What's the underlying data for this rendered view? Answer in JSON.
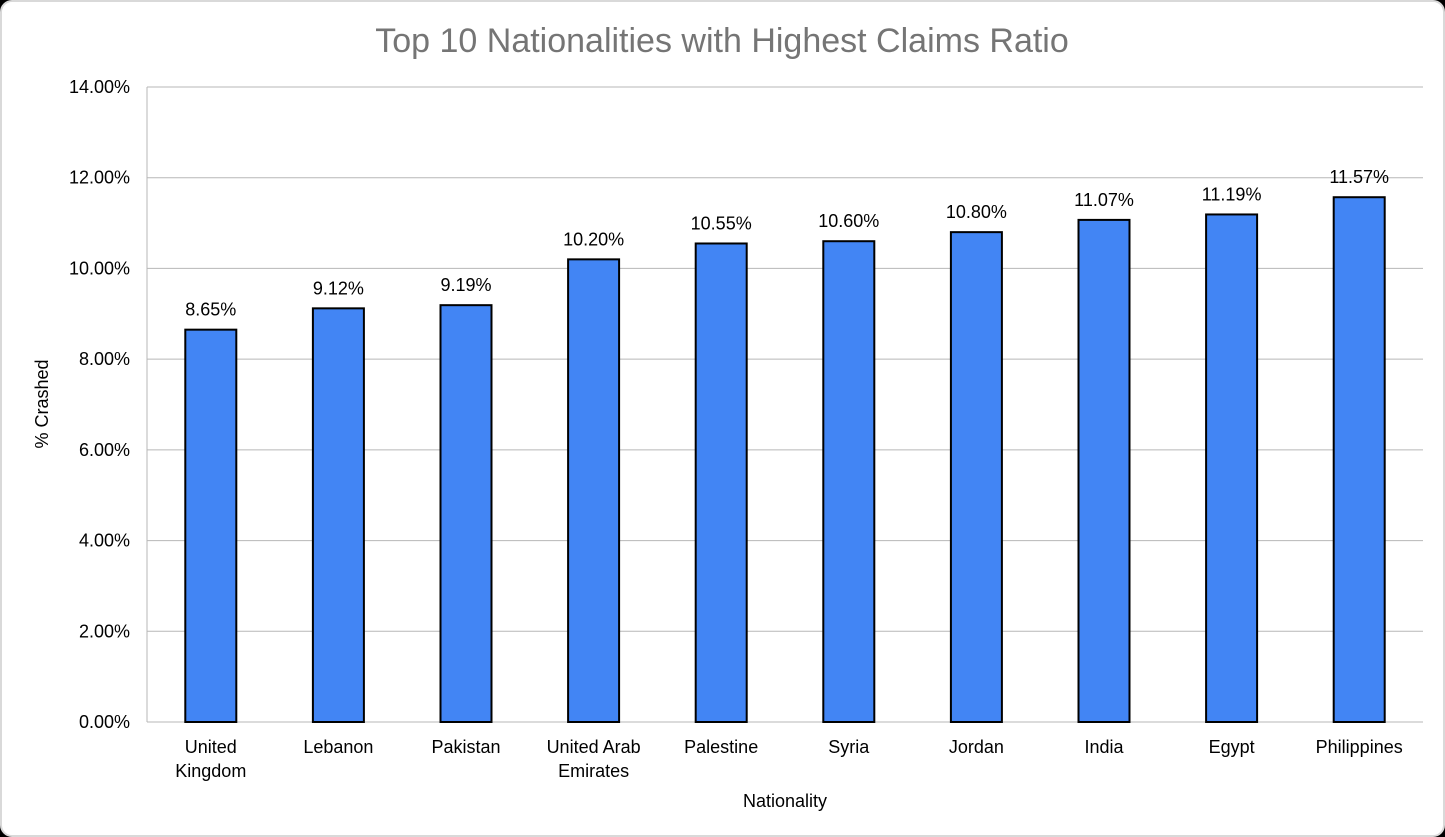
{
  "chart_data": {
    "type": "bar",
    "title": "Top 10 Nationalities with Highest Claims Ratio",
    "xlabel": "Nationality",
    "ylabel": "% Crashed",
    "categories": [
      [
        "United",
        "Kingdom"
      ],
      [
        "Lebanon"
      ],
      [
        "Pakistan"
      ],
      [
        "United Arab",
        "Emirates"
      ],
      [
        "Palestine"
      ],
      [
        "Syria"
      ],
      [
        "Jordan"
      ],
      [
        "India"
      ],
      [
        "Egypt"
      ],
      [
        "Philippines"
      ]
    ],
    "values": [
      8.65,
      9.12,
      9.19,
      10.2,
      10.55,
      10.6,
      10.8,
      11.07,
      11.19,
      11.57
    ],
    "data_labels": [
      "8.65%",
      "9.12%",
      "9.19%",
      "10.20%",
      "10.55%",
      "10.60%",
      "10.80%",
      "11.07%",
      "11.19%",
      "11.57%"
    ],
    "ylim": [
      0,
      14
    ],
    "yticks": [
      0,
      2,
      4,
      6,
      8,
      10,
      12,
      14
    ],
    "ytick_labels": [
      "0.00%",
      "2.00%",
      "4.00%",
      "6.00%",
      "8.00%",
      "10.00%",
      "12.00%",
      "14.00%"
    ],
    "grid": true,
    "legend": "none",
    "colors": {
      "bar_fill": "#4285f4",
      "bar_stroke": "#000000",
      "grid": "#b7b7b7",
      "title": "#757575",
      "frame_border": "#d9d9d9"
    }
  }
}
